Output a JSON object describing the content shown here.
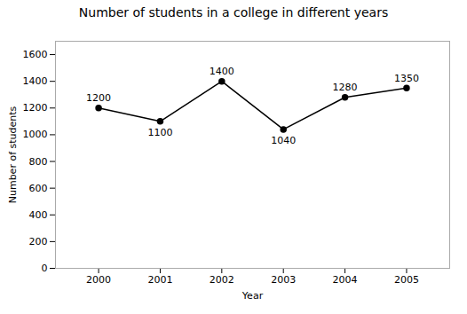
{
  "chart_data": {
    "type": "line",
    "title": "Number of students in a college in different years",
    "xlabel": "Year",
    "ylabel": "Number of students",
    "x": [
      2000,
      2001,
      2002,
      2003,
      2004,
      2005
    ],
    "values": [
      1200,
      1100,
      1400,
      1040,
      1280,
      1350
    ],
    "color": "#000000",
    "marker": "circle",
    "xlim": [
      1999.3,
      2005.7
    ],
    "xticks": [
      2000,
      2001,
      2002,
      2003,
      2004,
      2005
    ],
    "ylim": [
      0,
      1700
    ],
    "yticks": [
      0,
      200,
      400,
      600,
      800,
      1000,
      1200,
      1400,
      1600
    ],
    "data_labels": true,
    "grid": false
  }
}
